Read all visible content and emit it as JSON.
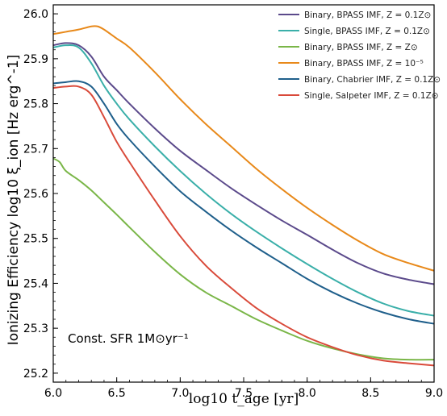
{
  "chart_data": {
    "type": "line",
    "xlabel": "log10 t_age [yr]",
    "ylabel": "Ionizing Efficiency log10 ξ_ion [Hz erg^-1]",
    "xlim": [
      6.0,
      9.0
    ],
    "ylim": [
      25.18,
      26.02
    ],
    "xticks": [
      "6.0",
      "6.5",
      "7.0",
      "7.5",
      "8.0",
      "8.5",
      "9.0"
    ],
    "yticks": [
      "25.2",
      "25.3",
      "25.4",
      "25.5",
      "25.6",
      "25.7",
      "25.8",
      "25.9",
      "26.0"
    ],
    "grid": false,
    "legend_position": "top-right",
    "annotation": "Const. SFR 1M⊙yr⁻¹",
    "series": [
      {
        "name": "Binary, BPASS IMF, Z = 0.1Z⊙",
        "color": "#5b4a8b",
        "x": [
          6.0,
          6.1,
          6.2,
          6.3,
          6.4,
          6.5,
          6.6,
          6.8,
          7.0,
          7.2,
          7.4,
          7.6,
          7.8,
          8.0,
          8.2,
          8.4,
          8.6,
          8.8,
          9.0
        ],
        "y": [
          25.93,
          25.935,
          25.93,
          25.905,
          25.86,
          25.83,
          25.8,
          25.745,
          25.695,
          25.653,
          25.612,
          25.575,
          25.54,
          25.508,
          25.475,
          25.445,
          25.422,
          25.408,
          25.398
        ]
      },
      {
        "name": "Single, BPASS IMF, Z = 0.1Z⊙",
        "color": "#3aafa9",
        "x": [
          6.0,
          6.1,
          6.2,
          6.3,
          6.4,
          6.5,
          6.6,
          6.8,
          7.0,
          7.2,
          7.4,
          7.6,
          7.8,
          8.0,
          8.2,
          8.4,
          8.6,
          8.8,
          9.0
        ],
        "y": [
          25.925,
          25.93,
          25.925,
          25.89,
          25.84,
          25.8,
          25.765,
          25.705,
          25.65,
          25.6,
          25.555,
          25.515,
          25.478,
          25.443,
          25.41,
          25.38,
          25.355,
          25.338,
          25.328
        ]
      },
      {
        "name": "Binary, BPASS IMF, Z = Z⊙",
        "color": "#7ab648",
        "x": [
          6.0,
          6.05,
          6.1,
          6.2,
          6.3,
          6.4,
          6.5,
          6.6,
          6.8,
          7.0,
          7.2,
          7.4,
          7.6,
          7.8,
          8.0,
          8.2,
          8.4,
          8.6,
          8.8,
          9.0
        ],
        "y": [
          25.678,
          25.67,
          25.65,
          25.63,
          25.607,
          25.58,
          25.553,
          25.525,
          25.47,
          25.42,
          25.38,
          25.35,
          25.32,
          25.295,
          25.272,
          25.255,
          25.242,
          25.233,
          25.23,
          25.23
        ]
      },
      {
        "name": "Binary, BPASS IMF, Z = 10⁻⁵",
        "color": "#e8891a",
        "x": [
          6.0,
          6.1,
          6.2,
          6.3,
          6.35,
          6.4,
          6.5,
          6.6,
          6.8,
          7.0,
          7.2,
          7.4,
          7.6,
          7.8,
          8.0,
          8.2,
          8.4,
          8.6,
          8.8,
          9.0
        ],
        "y": [
          25.955,
          25.96,
          25.965,
          25.972,
          25.972,
          25.965,
          25.945,
          25.925,
          25.87,
          25.81,
          25.755,
          25.705,
          25.655,
          25.61,
          25.568,
          25.53,
          25.495,
          25.465,
          25.445,
          25.428
        ]
      },
      {
        "name": "Binary, Chabrier IMF, Z = 0.1Z⊙",
        "color": "#1f5f8b",
        "x": [
          6.0,
          6.1,
          6.2,
          6.3,
          6.4,
          6.5,
          6.6,
          6.8,
          7.0,
          7.2,
          7.4,
          7.6,
          7.8,
          8.0,
          8.2,
          8.4,
          8.6,
          8.8,
          9.0
        ],
        "y": [
          25.845,
          25.848,
          25.85,
          25.838,
          25.8,
          25.755,
          25.72,
          25.66,
          25.605,
          25.56,
          25.518,
          25.48,
          25.445,
          25.41,
          25.38,
          25.355,
          25.335,
          25.32,
          25.31
        ]
      },
      {
        "name": "Single, Salpeter IMF, Z = 0.1Z⊙",
        "color": "#d94a3a",
        "x": [
          6.0,
          6.1,
          6.2,
          6.3,
          6.4,
          6.5,
          6.6,
          6.8,
          7.0,
          7.2,
          7.4,
          7.6,
          7.8,
          8.0,
          8.2,
          8.4,
          8.6,
          8.8,
          9.0
        ],
        "y": [
          25.835,
          25.838,
          25.838,
          25.82,
          25.77,
          25.715,
          25.67,
          25.585,
          25.505,
          25.44,
          25.39,
          25.345,
          25.31,
          25.28,
          25.258,
          25.24,
          25.228,
          25.222,
          25.217
        ]
      }
    ]
  }
}
